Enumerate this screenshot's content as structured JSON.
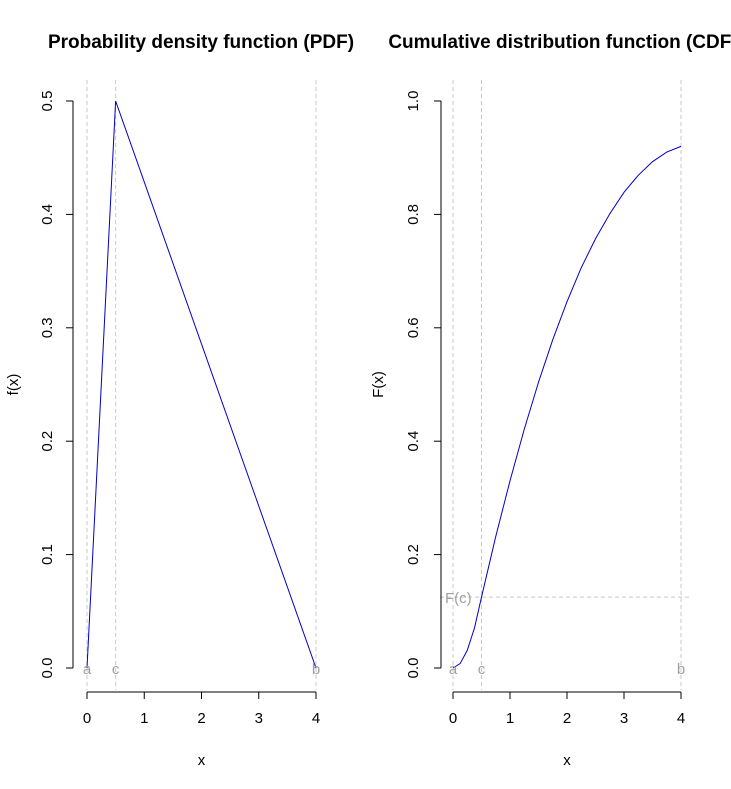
{
  "chart_data": [
    {
      "type": "line",
      "title": "Probability density function (PDF)",
      "xlabel": "x",
      "ylabel": "f(x)",
      "xlim": [
        0,
        4
      ],
      "ylim": [
        0,
        0.5
      ],
      "x_ticks": [
        "0",
        "1",
        "2",
        "3",
        "4"
      ],
      "y_ticks": [
        "0.0",
        "0.1",
        "0.2",
        "0.3",
        "0.4",
        "0.5"
      ],
      "series": [
        {
          "x": [
            0,
            0.5,
            4
          ],
          "y": [
            0,
            0.5,
            0
          ],
          "color": "#0000cc"
        }
      ],
      "vertical_guides": [
        {
          "x": 0,
          "label": "a"
        },
        {
          "x": 0.5,
          "label": "c"
        },
        {
          "x": 4,
          "label": "b"
        }
      ],
      "horizontal_guides": []
    },
    {
      "type": "line",
      "title": "Cumulative distribution function (CDF)",
      "xlabel": "x",
      "ylabel": "F(x)",
      "xlim": [
        0,
        4
      ],
      "ylim": [
        0,
        1
      ],
      "x_ticks": [
        "0",
        "1",
        "2",
        "3",
        "4"
      ],
      "y_ticks": [
        "0.0",
        "0.2",
        "0.4",
        "0.6",
        "0.8",
        "1.0"
      ],
      "series": [
        {
          "x": [
            0,
            0.125,
            0.25,
            0.375,
            0.5,
            0.75,
            1,
            1.25,
            1.5,
            1.75,
            2,
            2.25,
            2.5,
            2.75,
            3,
            3.25,
            3.5,
            3.75,
            4
          ],
          "y": [
            0,
            0.0078,
            0.031,
            0.07,
            0.125,
            0.232,
            0.33,
            0.421,
            0.504,
            0.579,
            0.646,
            0.706,
            0.757,
            0.801,
            0.839,
            0.869,
            0.893,
            0.91,
            0.92
          ],
          "color": "#0000cc"
        }
      ],
      "vertical_guides": [
        {
          "x": 0,
          "label": "a"
        },
        {
          "x": 0.5,
          "label": "c"
        },
        {
          "x": 4,
          "label": "b"
        }
      ],
      "horizontal_guides": [
        {
          "y": 0.125,
          "label": "F(c)"
        }
      ]
    }
  ]
}
